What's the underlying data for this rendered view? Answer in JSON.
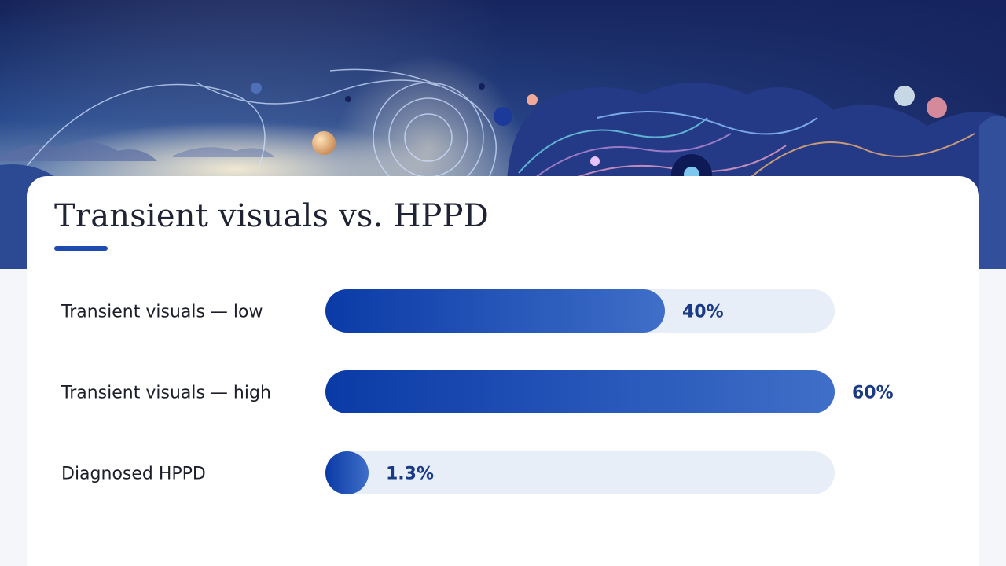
{
  "title": "Transient visuals vs. HPPD",
  "colors": {
    "bar_dark": "#0a3aa6",
    "bar_light": "#3f6fc8",
    "track": "#e8eef8",
    "label": "#1c1f2a",
    "value": "#1a3a86"
  },
  "chart_data": {
    "type": "bar",
    "orientation": "horizontal",
    "title": "Transient visuals vs. HPPD",
    "categories": [
      "Transient visuals — low",
      "Transient visuals — high",
      "Diagnosed HPPD"
    ],
    "values": [
      40,
      60,
      1.3
    ],
    "value_labels": [
      "40%",
      "60%",
      "1.3%"
    ],
    "xlim": [
      0,
      60
    ],
    "grid": false,
    "legend": "none"
  }
}
